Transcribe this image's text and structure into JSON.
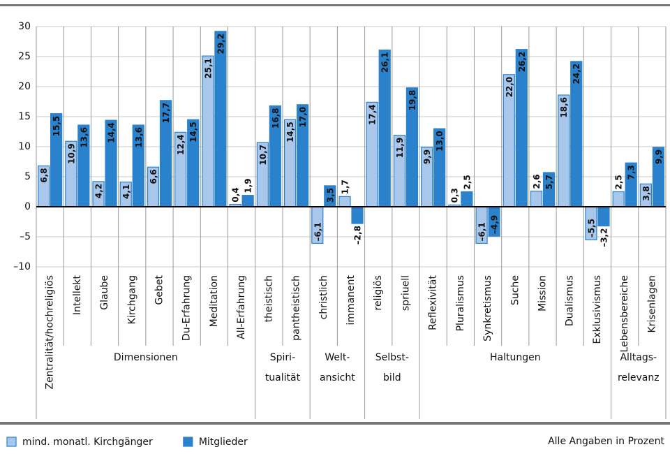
{
  "chart_data": {
    "type": "bar",
    "ylim": [
      -10,
      30
    ],
    "yticks": [
      {
        "value": -10,
        "label": "–10"
      },
      {
        "value": -5,
        "label": "–5"
      },
      0,
      5,
      10,
      15,
      20,
      25,
      30
    ],
    "grid": true,
    "groups": [
      {
        "label": [
          "Dimensionen"
        ],
        "categories": [
          "Zentralität/hochreligiös",
          "Intellekt",
          "Glaube",
          "Kirchgang",
          "Gebet",
          "Du-Erfahrung",
          "Meditation",
          "All-Erfahrung"
        ]
      },
      {
        "label": [
          "Spiri-",
          "tualität"
        ],
        "categories": [
          "theistisch",
          "pantheistisch"
        ]
      },
      {
        "label": [
          "Welt-",
          "ansicht"
        ],
        "categories": [
          "christlich",
          "immanent"
        ]
      },
      {
        "label": [
          "Selbst-",
          "bild"
        ],
        "categories": [
          "religiös",
          "spriuell"
        ]
      },
      {
        "label": [
          "Haltungen"
        ],
        "categories": [
          "Reflexivität",
          "Pluralismus",
          "Synkretismus",
          "Suche",
          "Mission",
          "Dualismus",
          "Exklusivismus"
        ]
      },
      {
        "label": [
          "Alltags-",
          "relevanz"
        ],
        "categories": [
          "Lebensbereiche",
          "Krisenlagen"
        ]
      }
    ],
    "series": [
      {
        "name": "mind. monatl. Kirchgänger",
        "color": "#a9c6eb",
        "values": [
          6.8,
          10.9,
          4.2,
          4.1,
          6.6,
          12.4,
          25.1,
          0.4,
          10.7,
          14.5,
          -6.1,
          1.7,
          17.4,
          11.9,
          9.9,
          0.3,
          -6.1,
          22.0,
          2.6,
          18.6,
          -5.5,
          2.5,
          3.8
        ],
        "value_labels": [
          "6,8",
          "10,9",
          "4,2",
          "4,1",
          "6,6",
          "12,4",
          "25,1",
          "0,4",
          "10,7",
          "14,5",
          "–6,1",
          "1,7",
          "17,4",
          "11,9",
          "9,9",
          "0,3",
          "–6,1",
          "22,0",
          "2,6",
          "18,6",
          "–5,5",
          "2,5",
          "3,8"
        ]
      },
      {
        "name": "Mitglieder",
        "color": "#2b82cc",
        "values": [
          15.5,
          13.6,
          14.4,
          13.6,
          17.7,
          14.5,
          29.2,
          1.9,
          16.8,
          17.0,
          3.5,
          -2.8,
          26.1,
          19.8,
          13.0,
          2.5,
          -4.9,
          26.2,
          5.7,
          24.2,
          -3.2,
          7.3,
          9.9
        ],
        "value_labels": [
          "15,5",
          "13,6",
          "14,4",
          "13,6",
          "17,7",
          "14,5",
          "29,2",
          "1,9",
          "16,8",
          "17,0",
          "3,5",
          "–2,8",
          "26,1",
          "19,8",
          "13,0",
          "2,5",
          "–4,9",
          "26,2",
          "5,7",
          "24,2",
          "–3,2",
          "7,3",
          "9,9"
        ]
      }
    ],
    "note": "Alle Angaben in Prozent"
  }
}
